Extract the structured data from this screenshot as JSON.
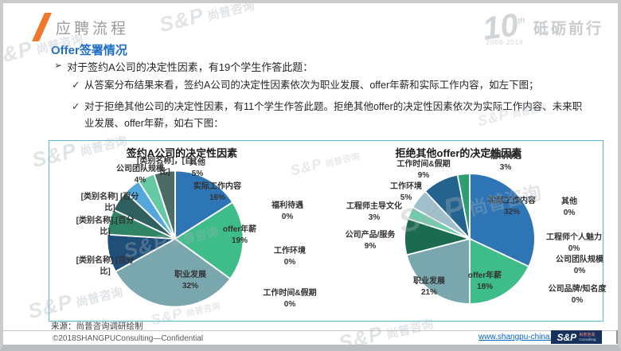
{
  "slide": {
    "section_title": "应聘流程",
    "subtitle": "Offer签署情况",
    "markers": {
      "bullet": "➢",
      "check": "✓"
    },
    "bullet": "对于签约A公司的决定性因素，有19个学生作答此题：",
    "sub_bullets": [
      "从答案分布结果来看，签约A公司的决定性因素依次为职业发展、offer年薪和实际工作内容，如左下图；",
      "对于拒绝其他公司的决定性因素，有11个学生作答此题。拒绝其他offer的决定性因素依次为实际工作内容、未来职业发展、offer年薪，如右下图："
    ],
    "source": "来源：尚普咨询调研绘制",
    "copyright": "©2018SHANGPUConsulting—Confidential",
    "website": "www.shangpu-china.com",
    "anniversary": {
      "number": "10",
      "th": "th",
      "years": "2008-2018",
      "slogan": "砥砺前行"
    },
    "logo": {
      "sp": "S&P",
      "cn": "尚普咨询",
      "en": "Consulting"
    },
    "watermark": {
      "sp": "S&P",
      "cn": "尚普咨询"
    },
    "colors": {
      "accent_orange": "#F0782A",
      "title_blue": "#1C6EC8",
      "box_border": "#5FB6CE",
      "link_blue": "#0563C1",
      "logo_navy": "#16325C"
    }
  },
  "chart_data": [
    {
      "type": "pie",
      "title": "签约A公司的决定性因素",
      "legend_position": "none",
      "categories": [
        "实际工作内容",
        "offer年薪",
        "职业发展",
        "[类别名称]",
        "[类别名称]",
        "[类别名称]",
        "公司团队规模",
        "[类别名称]",
        "其他",
        "福利待遇",
        "工作环境",
        "工作时间&假期"
      ],
      "values": [
        16,
        19,
        32,
        9,
        6,
        5,
        4,
        4,
        5,
        0,
        0,
        0
      ],
      "values_estimated_for_placeholders": true,
      "colors": [
        "#2E75B6",
        "#3EBD8A",
        "#7AA6AE",
        "#1F4E79",
        "#2E8464",
        "#2F5F5F",
        "#54A7DB",
        "#67C9A4",
        "#4C6A66",
        "#CCCCCC",
        "#CCCCCC",
        "#CCCCCC"
      ],
      "labels": [
        {
          "l1": "[类别名称]，[百",
          "l2": "比]"
        },
        {
          "l1": "公司团队规模",
          "l2": "4%"
        },
        {
          "l1": "其他",
          "l2": "5%"
        },
        {
          "l1": "实际工作内容",
          "l2": "16%"
        },
        {
          "l1": "福利待遇",
          "l2": "0%"
        },
        {
          "l1": "offer年薪",
          "l2": "19%"
        },
        {
          "l1": "工作环境",
          "l2": "0%"
        },
        {
          "l1": "职业发展",
          "l2": "32%"
        },
        {
          "l1": "工作时间&假期",
          "l2": "0%"
        },
        {
          "l1": "[类别名称] [百分",
          "l2": "比]"
        },
        {
          "l1": "[类别名称],[百分",
          "l2": "比]"
        },
        {
          "l1": "[类别名称] [百分",
          "l2": "比]"
        }
      ]
    },
    {
      "type": "pie",
      "title": "拒绝其他offer的决定性因素",
      "legend_position": "none",
      "categories": [
        "实际工作内容",
        "offer年薪",
        "职业发展",
        "公司产品/服务",
        "工程师主导文化",
        "工作环境",
        "工作时间&假期",
        "福利待遇",
        "其他",
        "工程师个人魅力",
        "公司团队规模",
        "公司品牌/知名度"
      ],
      "values": [
        32,
        18,
        21,
        9,
        3,
        5,
        9,
        3,
        0,
        0,
        0,
        0
      ],
      "colors": [
        "#2E75B6",
        "#3EBD8A",
        "#7AA6AE",
        "#1C6B50",
        "#72CBAA",
        "#9FC0CC",
        "#23638E",
        "#2E9E72",
        "#CCCCCC",
        "#CCCCCC",
        "#CCCCCC",
        "#CCCCCC"
      ],
      "labels": [
        {
          "l1": "工作时间&假期",
          "l2": "9%"
        },
        {
          "l1": "福利待遇",
          "l2": "3%"
        },
        {
          "l1": "工作环境",
          "l2": "5%"
        },
        {
          "l1": "工程师主导文化",
          "l2": "3%"
        },
        {
          "l1": "公司产品/服务",
          "l2": "9%"
        },
        {
          "l1": "实际工作内容",
          "l2": "32%"
        },
        {
          "l1": "其他",
          "l2": "0%"
        },
        {
          "l1": "工程师个人魅力",
          "l2": "0%"
        },
        {
          "l1": "公司团队规模",
          "l2": "0%"
        },
        {
          "l1": "公司品牌/知名度",
          "l2": "0%"
        },
        {
          "l1": "offer年薪",
          "l2": "18%"
        },
        {
          "l1": "职业发展",
          "l2": "21%"
        }
      ]
    }
  ]
}
